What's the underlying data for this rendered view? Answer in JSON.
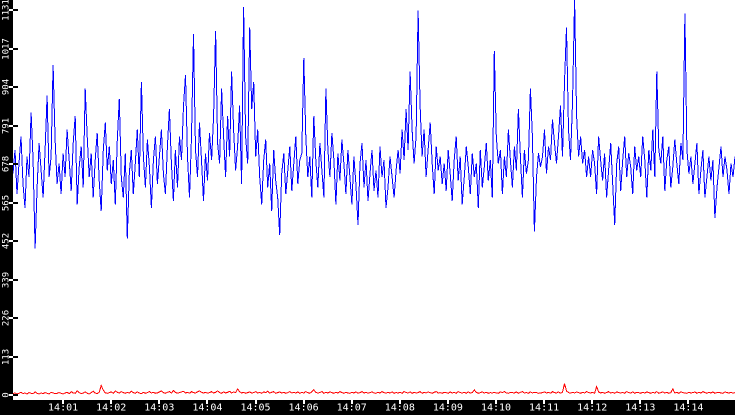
{
  "colors": {
    "axis_background": "#000000",
    "plot_background": "#ffffff",
    "tick_label_text": "#ffffff",
    "blue_series": "#0000ff",
    "red_series": "#ff0000"
  },
  "chart_data": {
    "type": "line",
    "title": "",
    "xlabel": "",
    "ylabel": "",
    "grid": false,
    "legend": "none",
    "x_axis": {
      "start_time": "14:00",
      "end_time": "14:15",
      "tick_labels": [
        "14:01",
        "14:02",
        "14:03",
        "14:04",
        "14:05",
        "14:06",
        "14:07",
        "14:08",
        "14:09",
        "14:10",
        "14:11",
        "14:12",
        "14:13",
        "14:14"
      ]
    },
    "y_axis": {
      "min": 0,
      "max": 1131,
      "tick_labels": [
        "0",
        "113",
        "226",
        "339",
        "452",
        "565",
        "678",
        "791",
        "904",
        "1017",
        "1131"
      ]
    },
    "series": [
      {
        "name": "blue",
        "color": "#0000ff",
        "values": [
          650,
          720,
          590,
          680,
          760,
          620,
          550,
          700,
          640,
          830,
          690,
          430,
          610,
          740,
          660,
          580,
          720,
          880,
          640,
          700,
          970,
          750,
          620,
          680,
          590,
          710,
          640,
          780,
          690,
          600,
          740,
          820,
          560,
          670,
          730,
          610,
          900,
          760,
          640,
          710,
          580,
          690,
          770,
          630,
          540,
          720,
          800,
          660,
          730,
          620,
          690,
          560,
          750,
          870,
          640,
          580,
          710,
          460,
          650,
          720,
          590,
          680,
          780,
          640,
          920,
          700,
          610,
          750,
          670,
          550,
          690,
          760,
          620,
          700,
          780,
          650,
          590,
          730,
          840,
          680,
          570,
          720,
          610,
          760,
          690,
          850,
          940,
          700,
          580,
          760,
          1060,
          720,
          640,
          800,
          690,
          570,
          710,
          630,
          770,
          690,
          820,
          1070,
          740,
          680,
          900,
          760,
          640,
          820,
          700,
          950,
          780,
          660,
          730,
          850,
          620,
          1140,
          760,
          680,
          1080,
          840,
          920,
          700,
          780,
          640,
          560,
          690,
          750,
          610,
          680,
          540,
          720,
          630,
          580,
          470,
          650,
          710,
          590,
          660,
          730,
          600,
          680,
          760,
          620,
          690,
          710,
          990,
          760,
          640,
          700,
          580,
          820,
          690,
          610,
          740,
          660,
          580,
          900,
          720,
          640,
          770,
          690,
          560,
          710,
          630,
          750,
          680,
          590,
          720,
          640,
          560,
          700,
          620,
          500,
          680,
          740,
          610,
          690,
          570,
          650,
          720,
          600,
          660,
          580,
          730,
          640,
          690,
          550,
          610,
          700,
          640,
          580,
          660,
          720,
          650,
          780,
          690,
          840,
          720,
          950,
          780,
          680,
          760,
          1130,
          850,
          700,
          780,
          640,
          720,
          800,
          680,
          590,
          730,
          660,
          700,
          620,
          680,
          600,
          720,
          650,
          570,
          690,
          760,
          630,
          700,
          560,
          640,
          730,
          670,
          590,
          710,
          640,
          680,
          550,
          720,
          610,
          670,
          740,
          630,
          690,
          580,
          1010,
          760,
          680,
          720,
          590,
          700,
          640,
          780,
          690,
          610,
          730,
          660,
          840,
          700,
          580,
          720,
          650,
          690,
          900,
          760,
          480,
          640,
          710,
          670,
          700,
          780,
          650,
          730,
          690,
          810,
          740,
          680,
          760,
          850,
          700,
          920,
          1080,
          780,
          690,
          860,
          1160,
          820,
          700,
          760,
          680,
          720,
          640,
          700,
          640,
          720,
          680,
          590,
          760,
          690,
          630,
          710,
          580,
          660,
          740,
          620,
          500,
          680,
          730,
          600,
          690,
          760,
          640,
          710,
          670,
          590,
          730,
          660,
          700,
          640,
          760,
          690,
          580,
          720,
          660,
          780,
          640,
          950,
          720,
          680,
          760,
          600,
          690,
          730,
          610,
          670,
          750,
          680,
          620,
          740,
          690,
          1120,
          720,
          650,
          700,
          620,
          680,
          740,
          590,
          660,
          720,
          580,
          640,
          700,
          630,
          690,
          520,
          610,
          670,
          730,
          640,
          700,
          660,
          590,
          680,
          640,
          700
        ]
      },
      {
        "name": "red",
        "color": "#ff0000",
        "values": [
          4,
          6,
          3,
          5,
          8,
          4,
          6,
          3,
          7,
          5,
          4,
          9,
          5,
          3,
          6,
          4,
          7,
          5,
          3,
          8,
          6,
          4,
          5,
          7,
          5,
          3,
          6,
          8,
          4,
          10,
          6,
          5,
          12,
          7,
          4,
          6,
          9,
          5,
          3,
          7,
          11,
          6,
          4,
          8,
          28,
          14,
          6,
          5,
          7,
          9,
          5,
          12,
          8,
          6,
          10,
          7,
          5,
          8,
          6,
          11,
          7,
          5,
          9,
          6,
          4,
          8,
          5,
          7,
          10,
          6,
          8,
          5,
          6,
          9,
          12,
          7,
          5,
          8,
          10,
          6,
          13,
          8,
          5,
          7,
          9,
          11,
          6,
          8,
          5,
          10,
          7,
          6,
          9,
          12,
          8,
          6,
          8,
          5,
          7,
          10,
          6,
          8,
          12,
          7,
          5,
          9,
          6,
          8,
          11,
          6,
          9,
          7,
          18,
          10,
          6,
          8,
          5,
          7,
          9,
          6,
          7,
          10,
          6,
          8,
          5,
          9,
          7,
          11,
          6,
          8,
          10,
          5,
          7,
          9,
          6,
          8,
          5,
          7,
          10,
          6,
          8,
          6,
          9,
          5,
          8,
          6,
          10,
          7,
          5,
          9,
          15,
          8,
          6,
          7,
          10,
          5,
          8,
          6,
          9,
          7,
          5,
          8,
          6,
          10,
          7,
          5,
          8,
          6,
          5,
          8,
          6,
          9,
          5,
          7,
          10,
          6,
          8,
          5,
          7,
          9,
          6,
          5,
          8,
          6,
          10,
          7,
          5,
          8,
          6,
          9,
          5,
          7,
          6,
          8,
          5,
          10,
          7,
          6,
          9,
          5,
          8,
          6,
          7,
          10,
          5,
          8,
          6,
          9,
          7,
          5,
          8,
          10,
          6,
          7,
          5,
          8,
          7,
          5,
          9,
          6,
          8,
          5,
          10,
          7,
          6,
          8,
          5,
          9,
          6,
          7,
          15,
          8,
          5,
          7,
          9,
          6,
          8,
          5,
          7,
          6,
          8,
          6,
          5,
          9,
          7,
          10,
          6,
          5,
          8,
          7,
          6,
          9,
          5,
          8,
          10,
          6,
          7,
          5,
          9,
          6,
          8,
          7,
          5,
          6,
          7,
          9,
          6,
          8,
          5,
          10,
          7,
          6,
          9,
          5,
          8,
          34,
          12,
          7,
          5,
          8,
          6,
          9,
          7,
          5,
          8,
          6,
          10,
          7,
          6,
          8,
          5,
          25,
          9,
          6,
          8,
          5,
          7,
          10,
          6,
          8,
          5,
          9,
          7,
          6,
          8,
          5,
          10,
          7,
          6,
          9,
          5,
          8,
          7,
          5,
          8,
          6,
          9,
          7,
          5,
          8,
          6,
          10,
          5,
          7,
          9,
          6,
          8,
          5,
          7,
          18,
          6,
          8,
          5,
          9,
          7,
          6,
          5,
          8,
          6,
          7,
          9,
          5,
          8,
          6,
          10,
          7,
          5,
          8,
          6,
          9,
          5,
          7,
          8,
          6,
          5,
          9,
          7,
          6,
          8,
          5,
          7
        ]
      }
    ]
  }
}
